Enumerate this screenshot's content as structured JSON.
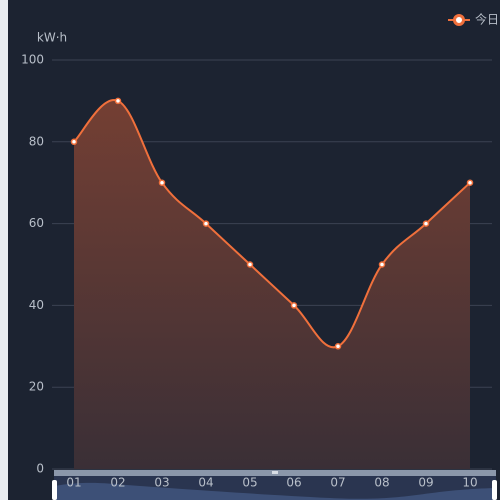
{
  "chart_data": {
    "type": "line",
    "y_axis_label": "kW·h",
    "categories": [
      "01",
      "02",
      "03",
      "04",
      "05",
      "06",
      "07",
      "08",
      "09",
      "10"
    ],
    "series": [
      {
        "name": "今日",
        "color": "#f0703c",
        "values": [
          80,
          90,
          70,
          60,
          50,
          40,
          30,
          50,
          60,
          70
        ]
      }
    ],
    "ylim": [
      0,
      100
    ],
    "yticks": [
      0,
      20,
      40,
      60,
      80,
      100
    ],
    "grid": true,
    "smooth": true,
    "area": true,
    "legend": "top-right"
  }
}
